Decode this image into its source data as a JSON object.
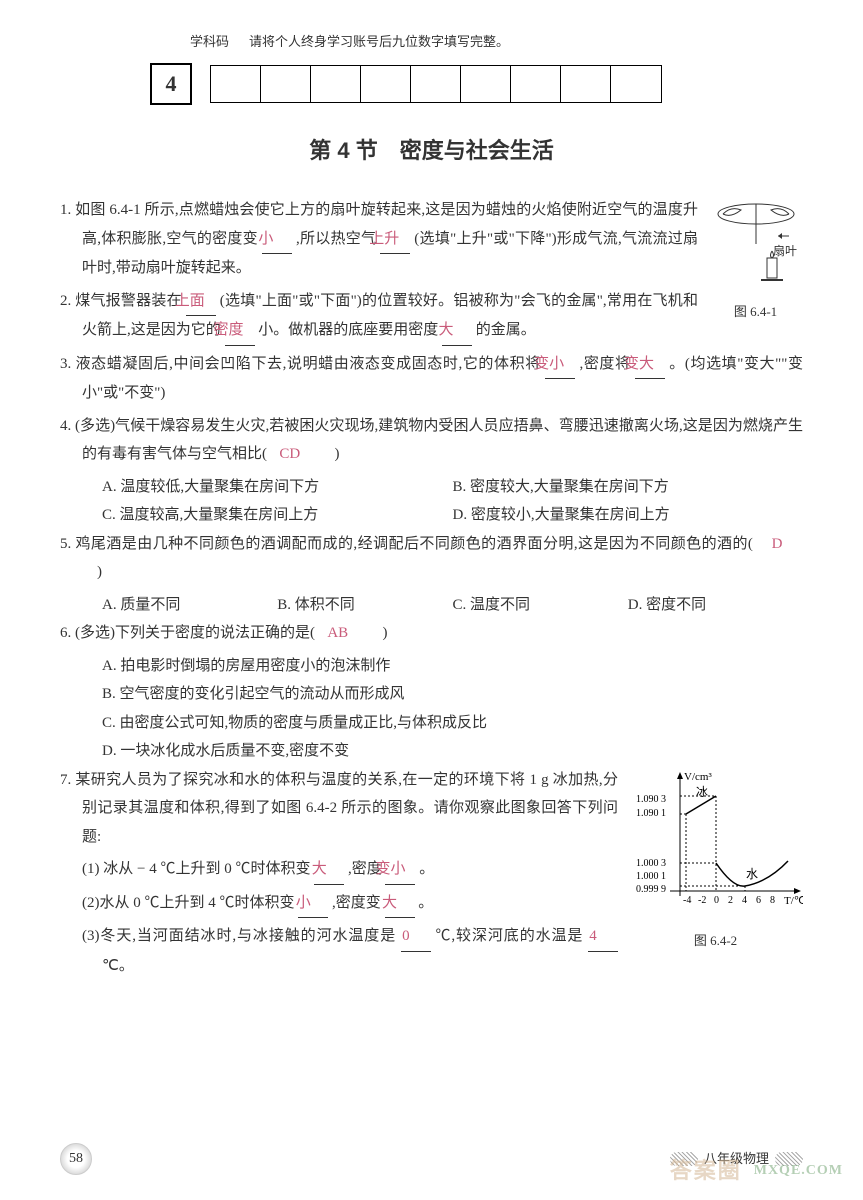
{
  "header": {
    "code_label": "学科码",
    "desc": "请将个人终身学习账号后九位数字填写完整。",
    "code_value": "4",
    "empty_box_count": 9
  },
  "section_title": "第 4 节　密度与社会生活",
  "q1": {
    "text_a": "1. 如图 6.4-1 所示,点燃蜡烛会使它上方的扇叶旋转起来,这是因为蜡烛的火焰使附近空气的温度升高,体积膨胀,空气的密度变",
    "ans1": "小",
    "text_b": ",所以热空气",
    "ans2": "上升",
    "text_c": "(选填\"上升\"或\"下降\")形成气流,气流流过扇叶时,带动扇叶旋转起来。",
    "fig_label": "扇叶",
    "fig_caption": "图 6.4-1"
  },
  "q2": {
    "text_a": "2. 煤气报警器装在",
    "ans1": "上面",
    "text_b": "(选填\"上面\"或\"下面\")的位置较好。铝被称为\"会飞的金属\",常用在飞机和火箭上,这是因为它的",
    "ans2": "密度",
    "text_c": "小。做机器的底座要用密度",
    "ans3": "大",
    "text_d": "的金属。"
  },
  "q3": {
    "text_a": "3. 液态蜡凝固后,中间会凹陷下去,说明蜡由液态变成固态时,它的体积将",
    "ans1": "变小",
    "text_b": ",密度将",
    "ans2": "变大",
    "text_c": "。(均选填\"变大\"\"变小\"或\"不变\")"
  },
  "q4": {
    "stem": "4. (多选)气候干燥容易发生火灾,若被困火灾现场,建筑物内受困人员应捂鼻、弯腰迅速撤离火场,这是因为燃烧产生的有毒有害气体与空气相比(　",
    "ans": "CD",
    "stem_end": "　)",
    "A": "A. 温度较低,大量聚集在房间下方",
    "B": "B. 密度较大,大量聚集在房间下方",
    "C": "C. 温度较高,大量聚集在房间上方",
    "D": "D. 密度较小,大量聚集在房间上方"
  },
  "q5": {
    "stem": "5. 鸡尾酒是由几种不同颜色的酒调配而成的,经调配后不同颜色的酒界面分明,这是因为不同颜色的酒的(　",
    "ans": "D",
    "stem_end": "　)",
    "A": "A. 质量不同",
    "B": "B. 体积不同",
    "C": "C. 温度不同",
    "D": "D. 密度不同"
  },
  "q6": {
    "stem": "6. (多选)下列关于密度的说法正确的是(　",
    "ans": "AB",
    "stem_end": "　)",
    "A": "A. 拍电影时倒塌的房屋用密度小的泡沫制作",
    "B": "B. 空气密度的变化引起空气的流动从而形成风",
    "C": "C. 由密度公式可知,物质的密度与质量成正比,与体积成反比",
    "D": "D. 一块冰化成水后质量不变,密度不变"
  },
  "q7": {
    "stem": "7. 某研究人员为了探究冰和水的体积与温度的关系,在一定的环境下将 1 g 冰加热,分别记录其温度和体积,得到了如图 6.4-2 所示的图象。请你观察此图象回答下列问题:",
    "p1a": "(1) 冰从 − 4 ℃上升到 0 ℃时体积变",
    "p1ans1": "大",
    "p1b": ",密度",
    "p1ans2": "变小",
    "p1c": "。",
    "p2a": "(2)水从 0 ℃上升到 4 ℃时体积变",
    "p2ans1": "小",
    "p2b": ",密度变",
    "p2ans2": "大",
    "p2c": "。",
    "p3a": "(3)冬天,当河面结冰时,与冰接触的河水温度是",
    "p3ans1": "0",
    "p3b": "℃,较深河底的水温是",
    "p3ans2": "4",
    "p3c": "℃。",
    "fig_caption": "图 6.4-2",
    "chart": {
      "ylabel": "V/cm³",
      "xlabel": "T/℃",
      "yticks": [
        "1.090 3",
        "1.090 1",
        "1.000 3",
        "1.000 1",
        "0.999 9"
      ],
      "xticks": [
        "-4",
        "-2",
        "0",
        "2",
        "4",
        "6",
        "8"
      ],
      "ice_label": "冰",
      "water_label": "水"
    }
  },
  "footer": {
    "page_num": "58",
    "grade": "八年级物理"
  },
  "watermark": {
    "a": "答案圈",
    "b": "MXQE.COM"
  }
}
